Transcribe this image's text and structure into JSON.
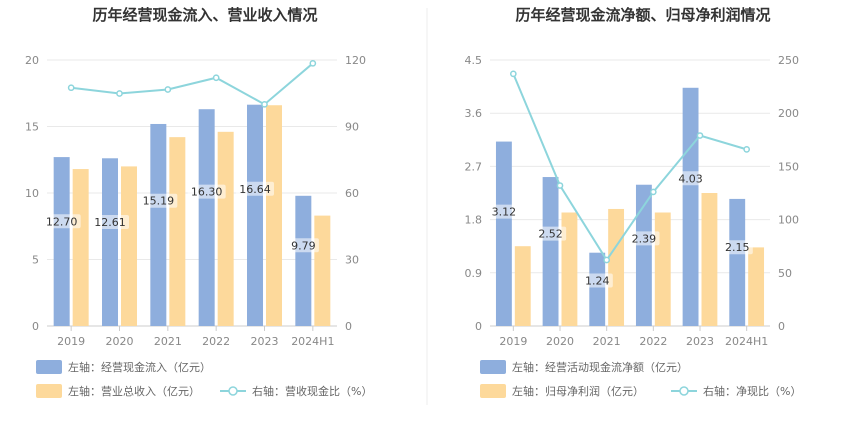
{
  "chart_data": [
    {
      "type": "bar+line",
      "title": "历年经营现金流入、营业收入情况",
      "categories": [
        "2019",
        "2020",
        "2021",
        "2022",
        "2023",
        "2024H1"
      ],
      "left_axis": {
        "min": 0,
        "max": 20,
        "ticks": [
          "0",
          "5",
          "10",
          "15",
          "20"
        ]
      },
      "right_axis": {
        "min": 0,
        "max": 120,
        "ticks": [
          "0",
          "30",
          "60",
          "90",
          "120"
        ]
      },
      "grid": true,
      "series": [
        {
          "name": "左轴：经营现金流入（亿元）",
          "kind": "bar",
          "axis": "left",
          "color": "#8eaedd",
          "values": [
            12.7,
            12.61,
            15.19,
            16.3,
            16.64,
            9.79
          ],
          "labels": [
            "12.70",
            "12.61",
            "15.19",
            "16.30",
            "16.64",
            "9.79"
          ]
        },
        {
          "name": "左轴：营业总收入（亿元）",
          "kind": "bar",
          "axis": "left",
          "color": "#fdd99b",
          "values": [
            11.8,
            12.0,
            14.2,
            14.6,
            16.6,
            8.3
          ]
        },
        {
          "name": "右轴：营收现金比（%）",
          "kind": "line",
          "axis": "right",
          "color": "#8dd5dc",
          "values": [
            107.5,
            104.9,
            106.7,
            112.0,
            100.0,
            118.5
          ]
        }
      ],
      "legend_position": "bottom-left"
    },
    {
      "type": "bar+line",
      "title": "历年经营现金流净额、归母净利润情况",
      "categories": [
        "2019",
        "2020",
        "2021",
        "2022",
        "2023",
        "2024H1"
      ],
      "left_axis": {
        "min": 0,
        "max": 4.5,
        "ticks": [
          "0",
          "0.9",
          "1.8",
          "2.7",
          "3.6",
          "4.5"
        ]
      },
      "right_axis": {
        "min": 0,
        "max": 250,
        "ticks": [
          "0",
          "50",
          "100",
          "150",
          "200",
          "250"
        ]
      },
      "grid": true,
      "series": [
        {
          "name": "左轴：经营活动现金流净额（亿元）",
          "kind": "bar",
          "axis": "left",
          "color": "#8eaedd",
          "values": [
            3.12,
            2.52,
            1.24,
            2.39,
            4.03,
            2.15
          ],
          "labels": [
            "3.12",
            "2.52",
            "1.24",
            "2.39",
            "4.03",
            "2.15"
          ]
        },
        {
          "name": "左轴：归母净利润（亿元）",
          "kind": "bar",
          "axis": "left",
          "color": "#fdd99b",
          "values": [
            1.35,
            1.92,
            1.98,
            1.92,
            2.25,
            1.33
          ]
        },
        {
          "name": "右轴：净现比（%）",
          "kind": "line",
          "axis": "right",
          "color": "#8dd5dc",
          "values": [
            237,
            132,
            62,
            126,
            179,
            166
          ]
        }
      ],
      "legend_position": "bottom-left"
    }
  ]
}
